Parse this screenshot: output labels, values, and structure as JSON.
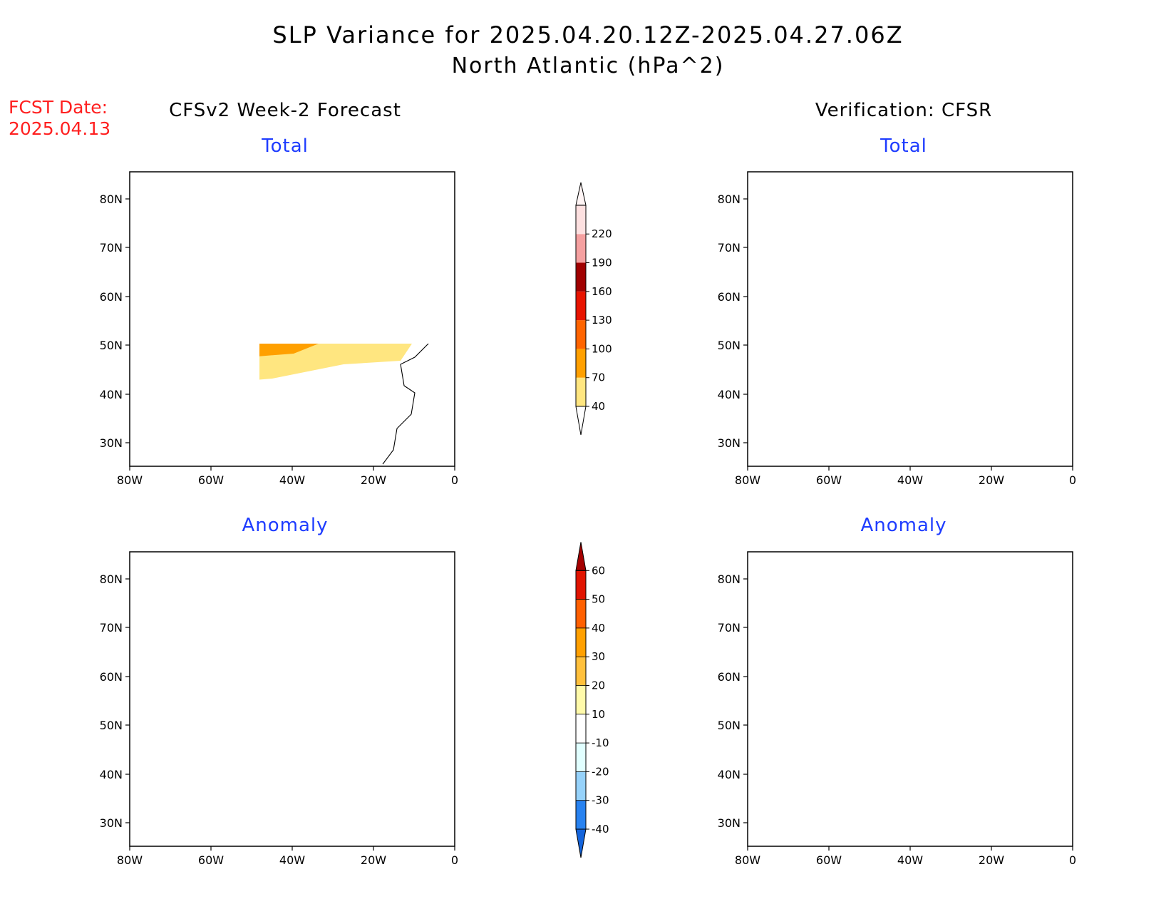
{
  "title": {
    "line1": "SLP Variance for 2025.04.20.12Z-2025.04.27.06Z",
    "line2": "North Atlantic (hPa^2)"
  },
  "fcst_date": {
    "label": "FCST Date:",
    "value": "2025.04.13"
  },
  "columns": {
    "left": "CFSv2 Week-2 Forecast",
    "right": "Verification: CFSR"
  },
  "panel_labels": {
    "top": "Total",
    "bottom": "Anomaly"
  },
  "axes": {
    "lat_ticks": [
      "80N",
      "70N",
      "60N",
      "50N",
      "40N",
      "30N"
    ],
    "lon_ticks": [
      "80W",
      "60W",
      "40W",
      "20W",
      "0"
    ]
  },
  "colorbars": {
    "total": {
      "labels": [
        "40",
        "70",
        "100",
        "130",
        "160",
        "190",
        "220"
      ],
      "colors": [
        "#ffe680",
        "#ffa000",
        "#ff6400",
        "#e81400",
        "#a00000",
        "#f5a0a0",
        "#fde0e0"
      ]
    },
    "anomaly": {
      "labels": [
        "-40",
        "-30",
        "-20",
        "-10",
        "10",
        "20",
        "30",
        "40",
        "50",
        "60"
      ],
      "colors": [
        "#1464dc",
        "#2882f0",
        "#96d2fa",
        "#e1ffff",
        "#ffffff",
        "#fffaaa",
        "#ffc03c",
        "#ffa000",
        "#ff6000",
        "#e11400",
        "#a50000"
      ]
    }
  }
}
